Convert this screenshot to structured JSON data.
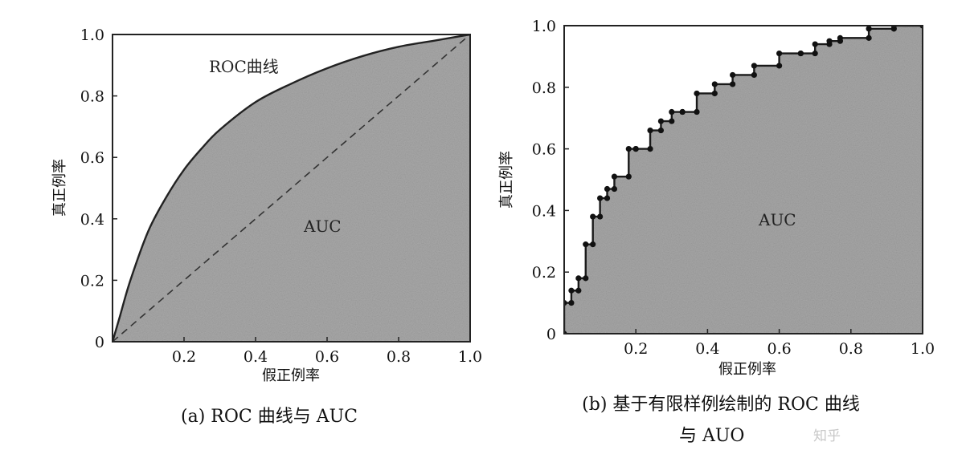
{
  "chart_data": [
    {
      "type": "area",
      "panel_caption": "(a) ROC 曲线与 AUC",
      "xlabel": "假正例率",
      "ylabel": "真正例率",
      "xlim": [
        0,
        1
      ],
      "ylim": [
        0,
        1
      ],
      "x_ticks": [
        "0.2",
        "0.4",
        "0.6",
        "0.8",
        "1.0"
      ],
      "y_ticks": [
        "0",
        "0.2",
        "0.4",
        "0.6",
        "0.8",
        "1.0"
      ],
      "curve_label": "ROC曲线",
      "area_label": "AUC",
      "series": [
        {
          "name": "ROC曲线",
          "x": [
            0,
            0.02,
            0.05,
            0.1,
            0.15,
            0.2,
            0.25,
            0.3,
            0.4,
            0.5,
            0.6,
            0.7,
            0.8,
            0.9,
            1.0
          ],
          "y": [
            0,
            0.08,
            0.2,
            0.36,
            0.47,
            0.56,
            0.63,
            0.69,
            0.78,
            0.84,
            0.89,
            0.93,
            0.96,
            0.98,
            1.0
          ]
        },
        {
          "x": [
            0,
            1
          ],
          "y": [
            0,
            1
          ],
          "style": "dashed"
        }
      ],
      "grid": false
    },
    {
      "type": "line",
      "panel_caption": "(b) 基于有限样例绘制的 ROC 曲线",
      "panel_caption_line2": "与 AUO",
      "xlabel": "假正例率",
      "ylabel": "真正例率",
      "xlim": [
        0,
        1
      ],
      "ylim": [
        0,
        1
      ],
      "x_ticks": [
        "0.2",
        "0.4",
        "0.6",
        "0.8",
        "1.0"
      ],
      "y_ticks": [
        "0",
        "0.2",
        "0.4",
        "0.6",
        "0.8",
        "1.0"
      ],
      "area_label": "AUC",
      "series": [
        {
          "step": true,
          "x": [
            0,
            0,
            0.02,
            0.02,
            0.04,
            0.04,
            0.06,
            0.06,
            0.08,
            0.08,
            0.1,
            0.1,
            0.12,
            0.12,
            0.14,
            0.14,
            0.18,
            0.18,
            0.2,
            0.2,
            0.24,
            0.24,
            0.27,
            0.27,
            0.3,
            0.3,
            0.33,
            0.33,
            0.37,
            0.37,
            0.42,
            0.42,
            0.47,
            0.47,
            0.53,
            0.53,
            0.6,
            0.6,
            0.66,
            0.66,
            0.7,
            0.7,
            0.74,
            0.74,
            0.77,
            0.77,
            0.85,
            0.85,
            0.92,
            0.92,
            1.0
          ],
          "y": [
            0,
            0.1,
            0.1,
            0.14,
            0.14,
            0.18,
            0.18,
            0.29,
            0.29,
            0.38,
            0.38,
            0.44,
            0.44,
            0.47,
            0.47,
            0.51,
            0.51,
            0.6,
            0.6,
            0.6,
            0.6,
            0.66,
            0.66,
            0.69,
            0.69,
            0.72,
            0.72,
            0.72,
            0.72,
            0.78,
            0.78,
            0.81,
            0.81,
            0.84,
            0.84,
            0.87,
            0.87,
            0.91,
            0.91,
            0.91,
            0.91,
            0.94,
            0.94,
            0.95,
            0.95,
            0.96,
            0.96,
            0.99,
            0.99,
            1.0,
            1.0
          ]
        }
      ],
      "grid": false
    }
  ],
  "watermark_fragment": "知乎"
}
